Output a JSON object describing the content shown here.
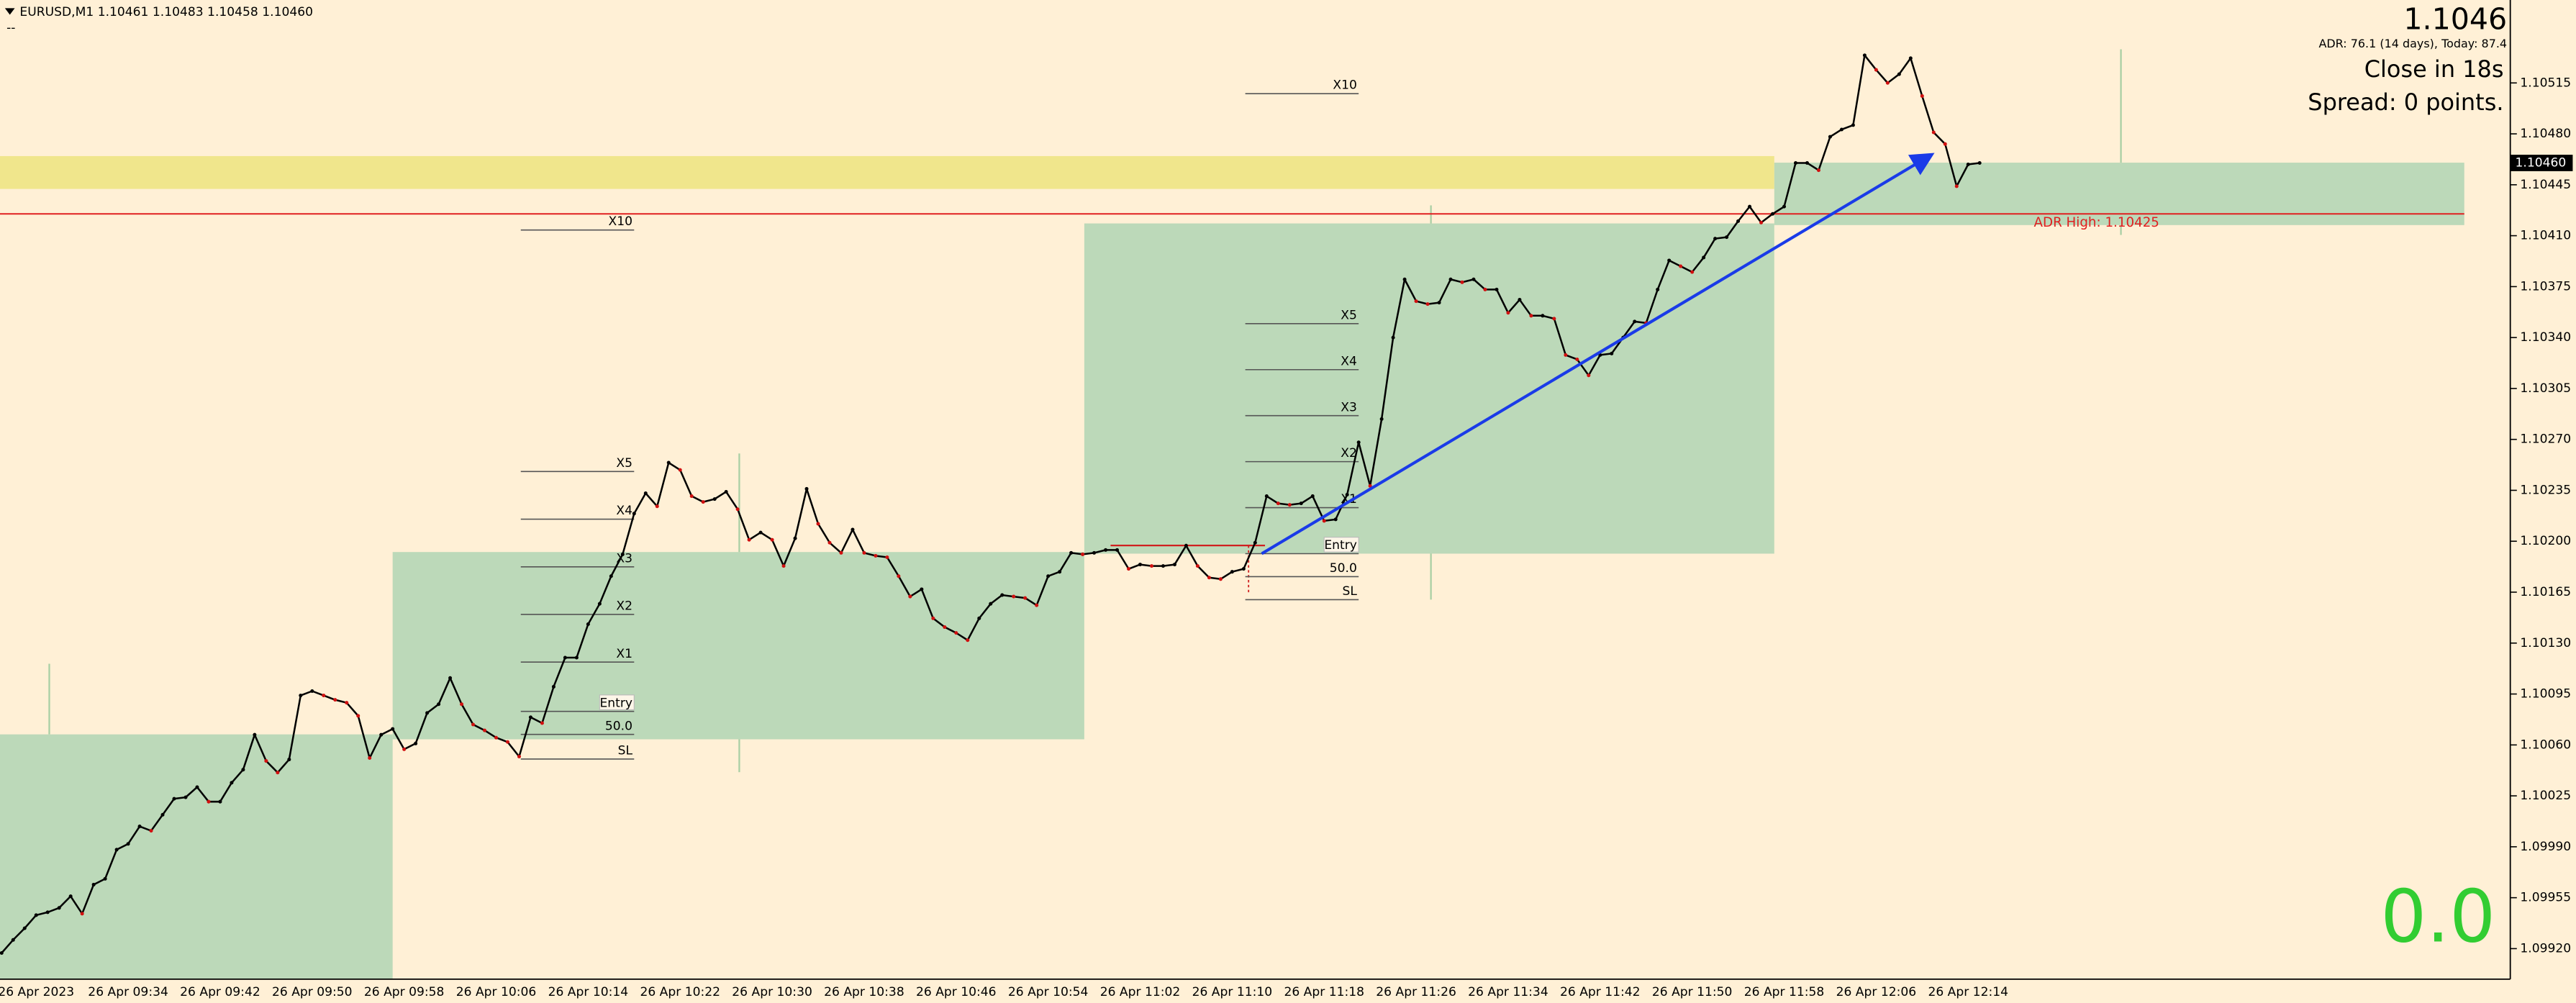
{
  "chart_data": {
    "type": "line",
    "title": "EURUSD,M1  1.10461 1.10483 1.10458 1.10460",
    "subtitle": "--",
    "categories": [
      null,
      null,
      null,
      "26 Apr 2023",
      null,
      null,
      null,
      null,
      null,
      null,
      null,
      "26 Apr 09:34",
      null,
      null,
      null,
      null,
      null,
      null,
      null,
      "26 Apr 09:42",
      null,
      null,
      null,
      null,
      null,
      null,
      null,
      "26 Apr 09:50",
      null,
      null,
      null,
      null,
      null,
      null,
      null,
      "26 Apr 09:58",
      null,
      null,
      null,
      null,
      null,
      null,
      null,
      "26 Apr 10:06",
      null,
      null,
      null,
      null,
      null,
      null,
      null,
      "26 Apr 10:14",
      null,
      null,
      null,
      null,
      null,
      null,
      null,
      "26 Apr 10:22",
      null,
      null,
      null,
      null,
      null,
      null,
      null,
      "26 Apr 10:30",
      null,
      null,
      null,
      null,
      null,
      null,
      null,
      "26 Apr 10:38",
      null,
      null,
      null,
      null,
      null,
      null,
      null,
      "26 Apr 10:46",
      null,
      null,
      null,
      null,
      null,
      null,
      null,
      "26 Apr 10:54",
      null,
      null,
      null,
      null,
      null,
      null,
      null,
      "26 Apr 11:02",
      null,
      null,
      null,
      null,
      null,
      null,
      null,
      "26 Apr 11:10",
      null,
      null,
      null,
      null,
      null,
      null,
      null,
      "26 Apr 11:18",
      null,
      null,
      null,
      null,
      null,
      null,
      null,
      "26 Apr 11:26",
      null,
      null,
      null,
      null,
      null,
      null,
      null,
      "26 Apr 11:34",
      null,
      null,
      null,
      null,
      null,
      null,
      null,
      "26 Apr 11:42",
      null,
      null,
      null,
      null,
      null,
      null,
      null,
      "26 Apr 11:50",
      null,
      null,
      null,
      null,
      null,
      null,
      null,
      "26 Apr 11:58",
      null,
      null,
      null,
      null,
      null,
      null,
      null,
      "26 Apr 12:06",
      null,
      null,
      null,
      null,
      null,
      null,
      null,
      "26 Apr 12:14",
      null
    ],
    "series": [
      {
        "color": "#000000",
        "values": [
          1.09917,
          1.09926,
          1.09934,
          1.09943,
          1.09945,
          1.09948,
          1.09956,
          1.09944,
          1.09964,
          1.09968,
          1.09988,
          1.09992,
          1.10004,
          1.10001,
          1.10012,
          1.10023,
          1.10024,
          1.10031,
          1.10021,
          1.10021,
          1.10034,
          1.10043,
          1.10067,
          1.10049,
          1.10041,
          1.1005,
          1.10094,
          1.10097,
          1.10094,
          1.10091,
          1.10089,
          1.1008,
          1.10051,
          1.10067,
          1.10071,
          1.10057,
          1.10061,
          1.10082,
          1.10088,
          1.10106,
          1.10088,
          1.10074,
          1.1007,
          1.10065,
          1.10062,
          1.10052,
          1.10079,
          1.10075,
          1.101,
          1.1012,
          1.1012,
          1.10143,
          1.10157,
          1.10176,
          1.10191,
          1.10219,
          1.10233,
          1.10224,
          1.10254,
          1.10249,
          1.10231,
          1.10227,
          1.10229,
          1.10234,
          1.10222,
          1.10201,
          1.10206,
          1.10201,
          1.10183,
          1.10202,
          1.10236,
          1.10212,
          1.10199,
          1.10192,
          1.10208,
          1.10192,
          1.1019,
          1.10189,
          1.10176,
          1.10162,
          1.10167,
          1.10147,
          1.10141,
          1.10137,
          1.10132,
          1.10147,
          1.10157,
          1.10163,
          1.10162,
          1.10161,
          1.10156,
          1.10176,
          1.10179,
          1.10192,
          1.10191,
          1.10192,
          1.10194,
          1.10194,
          1.10181,
          1.10184,
          1.10183,
          1.10183,
          1.10184,
          1.10197,
          1.10183,
          1.10175,
          1.10174,
          1.10179,
          1.10181,
          1.10199,
          1.10231,
          1.10226,
          1.10225,
          1.10226,
          1.10231,
          1.10214,
          1.10215,
          1.10232,
          1.10268,
          1.10238,
          1.10284,
          1.1034,
          1.1038,
          1.10365,
          1.10363,
          1.10364,
          1.1038,
          1.10378,
          1.1038,
          1.10373,
          1.10373,
          1.10357,
          1.10366,
          1.10355,
          1.10355,
          1.10353,
          1.10328,
          1.10325,
          1.10314,
          1.10328,
          1.10329,
          1.1034,
          1.10351,
          1.1035,
          1.10373,
          1.10393,
          1.10389,
          1.10385,
          1.10395,
          1.10408,
          1.10409,
          1.1042,
          1.1043,
          1.10419,
          1.10425,
          1.1043,
          1.1046,
          1.1046,
          1.10455,
          1.10478,
          1.10483,
          1.10486,
          1.10534,
          1.10524,
          1.10515,
          1.10521,
          1.10532,
          1.10506,
          1.10481,
          1.10473,
          1.10444,
          1.10459,
          1.1046
        ]
      }
    ],
    "ylim": [
      1.09899,
      1.10572
    ],
    "yticks": [
      1.10515,
      {
        "value": 1.1048,
        "label": "1.10480"
      },
      1.10445,
      {
        "value": 1.1041,
        "label": "1.10410"
      },
      1.10375,
      {
        "value": 1.1034,
        "label": "1.10340"
      },
      1.10305,
      {
        "value": 1.1027,
        "label": "1.10270"
      },
      1.10235,
      {
        "value": 1.102,
        "label": "1.10200"
      },
      1.10165,
      {
        "value": 1.1013,
        "label": "1.10130"
      },
      1.10095,
      {
        "value": 1.1006,
        "label": "1.10060"
      },
      1.10025,
      {
        "value": 1.0999,
        "label": "1.09990"
      },
      1.09955,
      {
        "value": 1.0992,
        "label": "1.09920"
      }
    ],
    "grid": false,
    "price_marker": {
      "value": 1.1046,
      "label": "1.10460"
    },
    "adr_high": {
      "value": 1.10425,
      "label": "ADR High: 1.10425"
    },
    "level_labels": [
      "X10",
      "X5",
      "X4",
      "X3",
      "X2",
      "X1",
      "Entry",
      "50.0",
      "SL"
    ],
    "info": {
      "price": "1.1046",
      "adr": "ADR: 76.1 (14 days), Today: 87.4",
      "close_in": "Close in 18s",
      "spread": "Spread: 0 points.",
      "counter": "0.0"
    }
  }
}
